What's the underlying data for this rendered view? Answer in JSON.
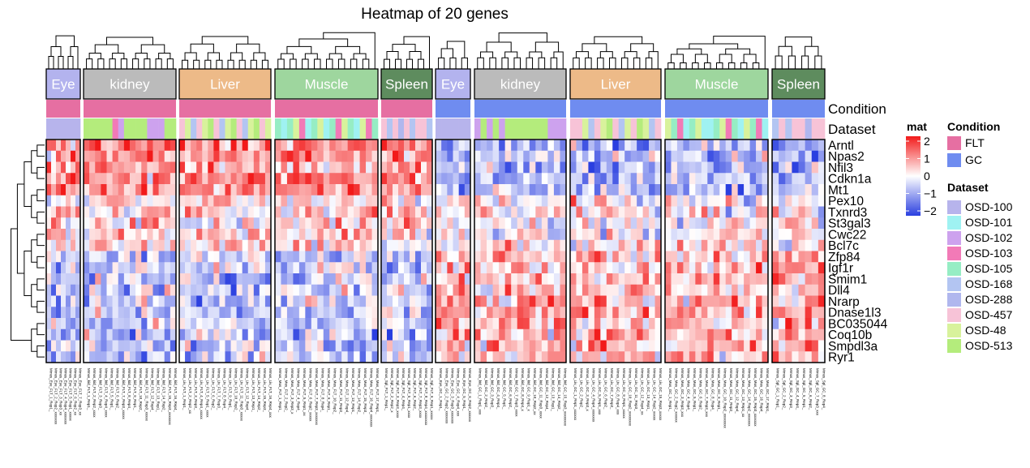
{
  "chart_data": {
    "type": "heatmap",
    "title": "Heatmap of 20 genes",
    "genes": [
      "Arntl",
      "Npas2",
      "Nfil3",
      "Cdkn1a",
      "Mt1",
      "Pex10",
      "Txnrd3",
      "St3gal3",
      "Cwc22",
      "Bcl7c",
      "Zfp84",
      "Igf1r",
      "Smim1",
      "Dll4",
      "Nrarp",
      "Dnase1l3",
      "BC035044",
      "Coq10b",
      "Smpdl3a",
      "Ryr1"
    ],
    "annotation_rows": [
      "Condition",
      "Dataset"
    ],
    "color_scale": {
      "name": "mat",
      "min": -2,
      "max": 2,
      "ticks": [
        2,
        1,
        0,
        -1,
        -2
      ],
      "low": "#2A3FE0",
      "mid": "#FFFFFF",
      "high": "#F21A1A"
    },
    "blocks": [
      {
        "tissue": "Eye",
        "condition": "FLT",
        "tissue_color": "#B3B3EE",
        "ncols": 7,
        "datasets": [
          "OSD-100"
        ]
      },
      {
        "tissue": "kidney",
        "condition": "FLT",
        "tissue_color": "#BBBBBB",
        "ncols": 16,
        "datasets": [
          "OSD-513",
          "OSD-513",
          "OSD-513",
          "OSD-513",
          "OSD-513",
          "OSD-103",
          "OSD-102",
          "OSD-513",
          "OSD-513",
          "OSD-513",
          "OSD-513",
          "OSD-102",
          "OSD-102",
          "OSD-102",
          "OSD-513",
          "OSD-513"
        ]
      },
      {
        "tissue": "Liver",
        "condition": "FLT",
        "tissue_color": "#EDBA88",
        "ncols": 16,
        "datasets": [
          "OSD-457",
          "OSD-48",
          "OSD-168",
          "OSD-457",
          "OSD-48",
          "OSD-513",
          "OSD-457",
          "OSD-168",
          "OSD-48",
          "OSD-513",
          "OSD-457",
          "OSD-168",
          "OSD-48",
          "OSD-513",
          "OSD-457",
          "OSD-48"
        ]
      },
      {
        "tissue": "Muscle",
        "condition": "FLT",
        "tissue_color": "#9ED69E",
        "ncols": 17,
        "datasets": [
          "OSD-105",
          "OSD-101",
          "OSD-105",
          "OSD-48",
          "OSD-103",
          "OSD-101",
          "OSD-105",
          "OSD-48",
          "OSD-101",
          "OSD-105",
          "OSD-103",
          "OSD-48",
          "OSD-105",
          "OSD-101",
          "OSD-48",
          "OSD-103",
          "OSD-105"
        ]
      },
      {
        "tissue": "Spleen",
        "condition": "FLT",
        "tissue_color": "#5E8C5E",
        "ncols": 9,
        "datasets": [
          "OSD-457",
          "OSD-168",
          "OSD-457",
          "OSD-288",
          "OSD-457",
          "OSD-168",
          "OSD-457",
          "OSD-457",
          "OSD-168"
        ]
      },
      {
        "tissue": "Eye",
        "condition": "GC",
        "tissue_color": "#B3B3EE",
        "ncols": 6,
        "datasets": [
          "OSD-100"
        ]
      },
      {
        "tissue": "kidney",
        "condition": "GC",
        "tissue_color": "#BBBBBB",
        "ncols": 15,
        "datasets": [
          "OSD-102",
          "OSD-513",
          "OSD-102",
          "OSD-513",
          "OSD-102",
          "OSD-513",
          "OSD-513",
          "OSD-513",
          "OSD-513",
          "OSD-513",
          "OSD-513",
          "OSD-513",
          "OSD-102",
          "OSD-102",
          "OSD-102"
        ]
      },
      {
        "tissue": "Liver",
        "condition": "GC",
        "tissue_color": "#EDBA88",
        "ncols": 15,
        "datasets": [
          "OSD-457",
          "OSD-457",
          "OSD-48",
          "OSD-168",
          "OSD-457",
          "OSD-48",
          "OSD-513",
          "OSD-457",
          "OSD-168",
          "OSD-48",
          "OSD-457",
          "OSD-513",
          "OSD-48",
          "OSD-168",
          "OSD-457"
        ]
      },
      {
        "tissue": "Muscle",
        "condition": "GC",
        "tissue_color": "#9ED69E",
        "ncols": 17,
        "datasets": [
          "OSD-48",
          "OSD-105",
          "OSD-103",
          "OSD-101",
          "OSD-105",
          "OSD-48",
          "OSD-101",
          "OSD-101",
          "OSD-105",
          "OSD-48",
          "OSD-103",
          "OSD-105",
          "OSD-101",
          "OSD-48",
          "OSD-105",
          "OSD-103",
          "OSD-101"
        ]
      },
      {
        "tissue": "Spleen",
        "condition": "GC",
        "tissue_color": "#5E8C5E",
        "ncols": 8,
        "datasets": [
          "OSD-168",
          "OSD-457",
          "OSD-168",
          "OSD-457",
          "OSD-457",
          "OSD-288",
          "OSD-457",
          "OSD-457"
        ]
      }
    ],
    "legend": {
      "condition": {
        "title": "Condition",
        "items": [
          {
            "label": "FLT",
            "color": "#E66FA2"
          },
          {
            "label": "GC",
            "color": "#6F8CF0"
          }
        ]
      },
      "dataset": {
        "title": "Dataset",
        "items": [
          {
            "label": "OSD-100",
            "color": "#B7B4EC"
          },
          {
            "label": "OSD-101",
            "color": "#9FF2F2"
          },
          {
            "label": "OSD-102",
            "color": "#CDA2EE"
          },
          {
            "label": "OSD-103",
            "color": "#F27AB7"
          },
          {
            "label": "OSD-105",
            "color": "#96EDC4"
          },
          {
            "label": "OSD-168",
            "color": "#B3C5F2"
          },
          {
            "label": "OSD-288",
            "color": "#B0B7EE"
          },
          {
            "label": "OSD-457",
            "color": "#F7C3D7"
          },
          {
            "label": "OSD-48",
            "color": "#D8F29C"
          },
          {
            "label": "OSD-513",
            "color": "#B4EC7C"
          }
        ]
      }
    },
    "note": "cell values estimated from the rendered colors"
  }
}
